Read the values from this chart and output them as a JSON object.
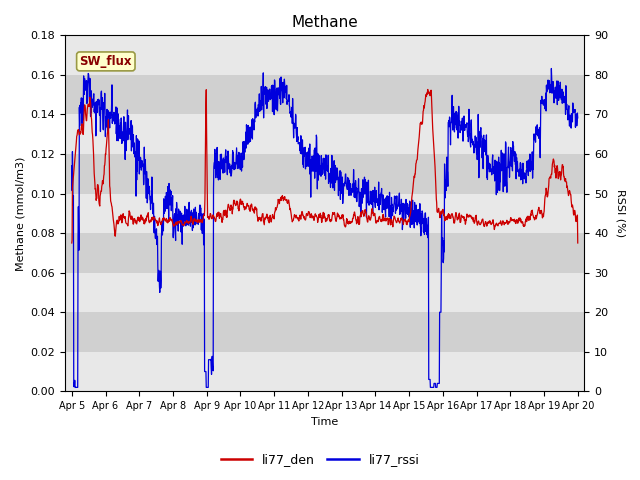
{
  "title": "Methane",
  "xlabel": "Time",
  "ylabel_left": "Methane (mmol/m3)",
  "ylabel_right": "RSSI (%)",
  "ylim_left": [
    0.0,
    0.18
  ],
  "ylim_right": [
    0,
    90
  ],
  "yticks_left": [
    0.0,
    0.02,
    0.04,
    0.06,
    0.08,
    0.1,
    0.12,
    0.14,
    0.16,
    0.18
  ],
  "yticks_right": [
    0,
    10,
    20,
    30,
    40,
    50,
    60,
    70,
    80,
    90
  ],
  "x_start": 4.8,
  "x_end": 20.2,
  "xtick_labels": [
    "Apr 5",
    "Apr 6",
    "Apr 7",
    "Apr 8",
    "Apr 9",
    "Apr 10",
    "Apr 11",
    "Apr 12",
    "Apr 13",
    "Apr 14",
    "Apr 15",
    "Apr 16",
    "Apr 17",
    "Apr 18",
    "Apr 19",
    "Apr 20"
  ],
  "xtick_positions": [
    5,
    6,
    7,
    8,
    9,
    10,
    11,
    12,
    13,
    14,
    15,
    16,
    17,
    18,
    19,
    20
  ],
  "color_red": "#cc0000",
  "color_blue": "#0000dd",
  "legend_labels": [
    "li77_den",
    "li77_rssi"
  ],
  "sw_flux_box_color": "#ffffcc",
  "sw_flux_text_color": "#880000",
  "sw_flux_border_color": "#999944",
  "bg_color": "#d8d8d8",
  "band_color_light": "#e8e8e8",
  "band_color_dark": "#d0d0d0"
}
